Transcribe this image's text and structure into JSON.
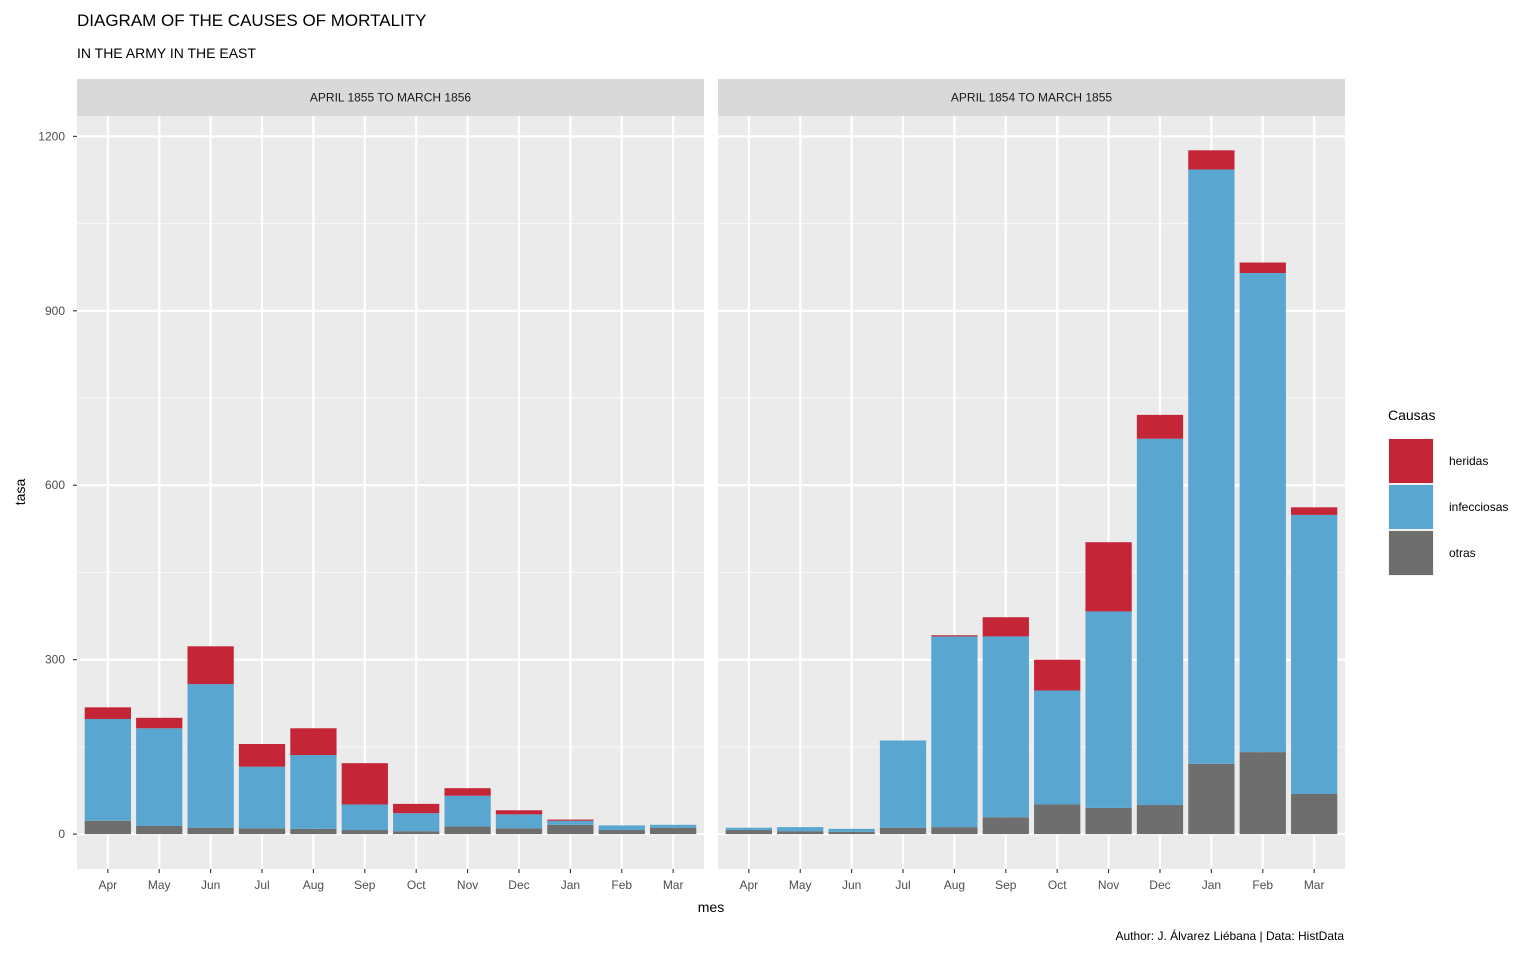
{
  "chart_data": {
    "type": "bar",
    "stacked": true,
    "title": "DIAGRAM OF THE CAUSES OF MORTALITY",
    "subtitle": "IN THE ARMY IN THE EAST",
    "xlabel": "mes",
    "ylabel": "tasa",
    "caption": "Author: J. Álvarez Liébana | Data: HistData",
    "ylim": [
      -60,
      1235
    ],
    "yticks": [
      0,
      300,
      600,
      900,
      1200
    ],
    "grid": true,
    "legend": {
      "title": "Causas",
      "position": "right",
      "entries": [
        {
          "key": "heridas",
          "label": "heridas",
          "color": "#C42537"
        },
        {
          "key": "infecciosas",
          "label": "infecciosas",
          "color": "#59A6D1"
        },
        {
          "key": "otras",
          "label": "otras",
          "color": "#6E6E6E"
        }
      ]
    },
    "categories": [
      "Apr",
      "May",
      "Jun",
      "Jul",
      "Aug",
      "Sep",
      "Oct",
      "Nov",
      "Dec",
      "Jan",
      "Feb",
      "Mar"
    ],
    "panels": [
      {
        "label": "APRIL 1855 TO MARCH 1856",
        "series": [
          {
            "name": "otras",
            "values": [
              23,
              14,
              11,
              10,
              9,
              7,
              5,
              13,
              10,
              16,
              7,
              11
            ]
          },
          {
            "name": "infecciosas",
            "values": [
              175,
              168,
              247,
              106,
              127,
              44,
              31,
              53,
              24,
              7,
              8,
              5
            ]
          },
          {
            "name": "heridas",
            "values": [
              20,
              18,
              65,
              39,
              46,
              71,
              16,
              13,
              7,
              2,
              0,
              0
            ]
          }
        ]
      },
      {
        "label": "APRIL 1854 TO MARCH 1855",
        "series": [
          {
            "name": "otras",
            "values": [
              7,
              5,
              4,
              11,
              12,
              29,
              51,
              45,
              50,
              121,
              141,
              69
            ]
          },
          {
            "name": "infecciosas",
            "values": [
              4,
              7,
              5,
              150,
              328,
              311,
              196,
              338,
              630,
              1022,
              824,
              480
            ]
          },
          {
            "name": "heridas",
            "values": [
              0,
              0,
              0,
              0,
              2,
              33,
              53,
              119,
              41,
              33,
              18,
              13
            ]
          }
        ]
      }
    ]
  }
}
